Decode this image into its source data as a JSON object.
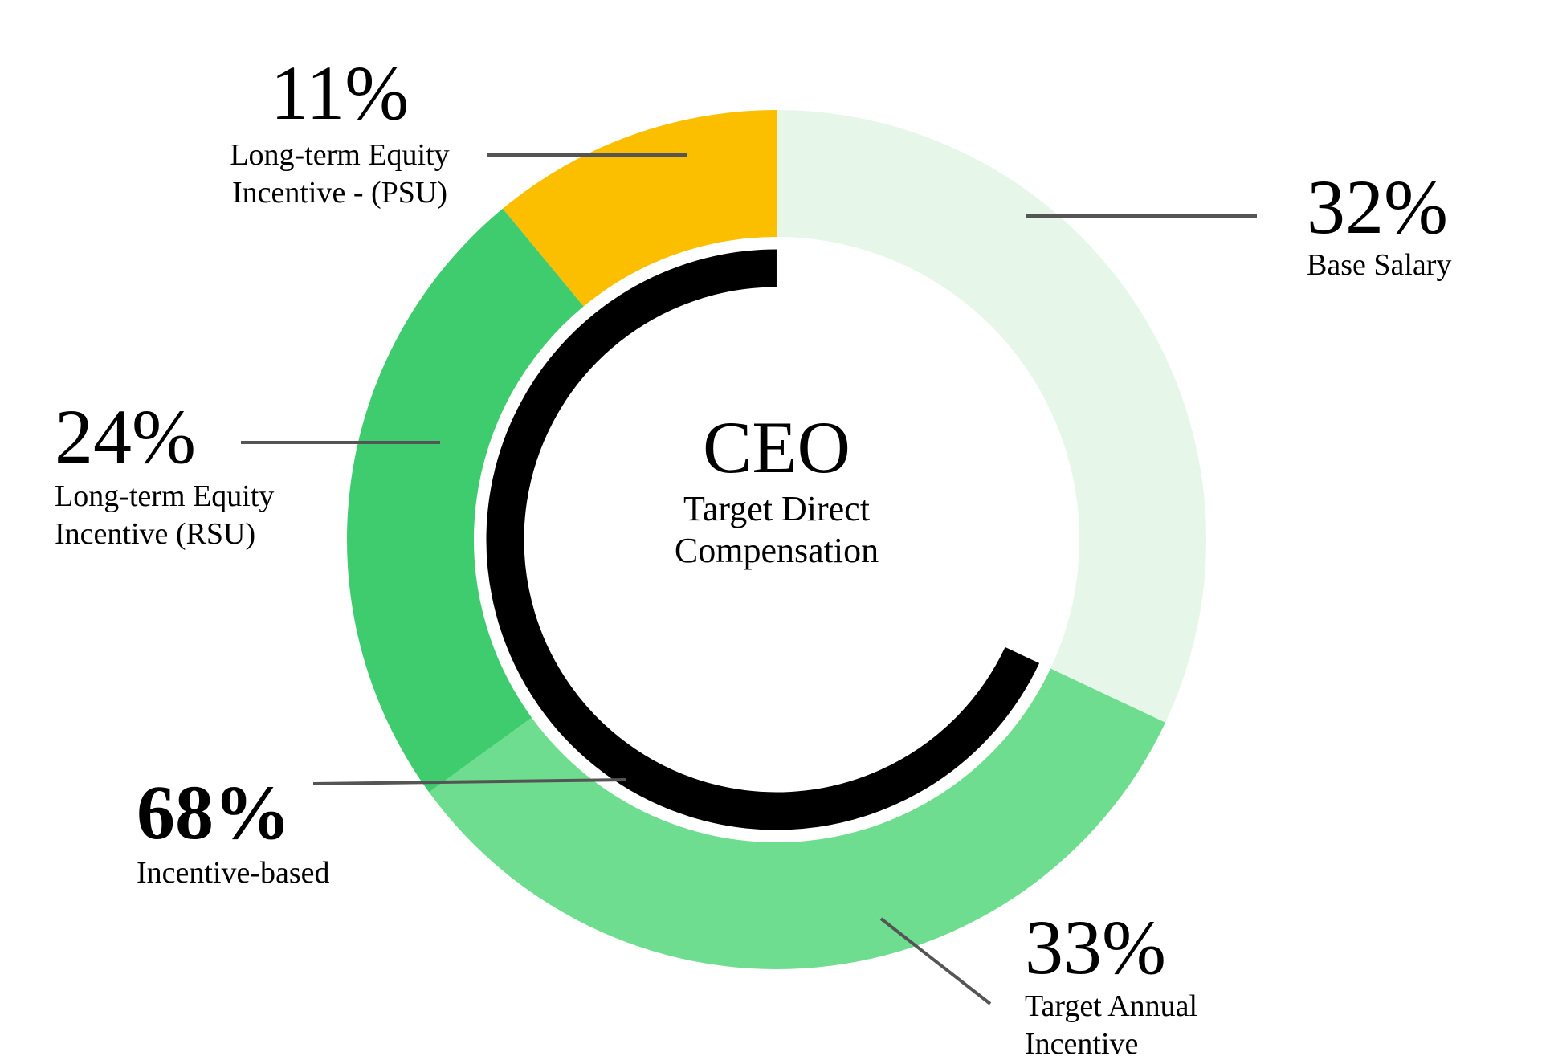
{
  "chart_data": {
    "type": "pie",
    "variant": "donut",
    "title": "CEO",
    "subtitle_lines": [
      "Target Direct",
      "Compensation"
    ],
    "slices": [
      {
        "name": "Base Salary",
        "label_lines": [
          "Base Salary"
        ],
        "value": 32,
        "display": "32%",
        "color": "#e6f7ea"
      },
      {
        "name": "Target Annual Incentive",
        "label_lines": [
          "Target Annual",
          "Incentive"
        ],
        "value": 33,
        "display": "33%",
        "color": "#6fdd8f"
      },
      {
        "name": "Long-term Equity Incentive (RSU)",
        "label_lines": [
          "Long-term Equity",
          "Incentive (RSU)"
        ],
        "value": 24,
        "display": "24%",
        "color": "#3ecc6e"
      },
      {
        "name": "Long-term Equity Incentive - (PSU)",
        "label_lines": [
          "Long-term Equity",
          "Incentive - (PSU)"
        ],
        "value": 11,
        "display": "11%",
        "color": "#fbbf00"
      }
    ],
    "incentive_arc": {
      "name": "Incentive-based",
      "label_lines": [
        "Incentive-based"
      ],
      "value": 68,
      "display": "68%",
      "color": "#000000"
    }
  }
}
